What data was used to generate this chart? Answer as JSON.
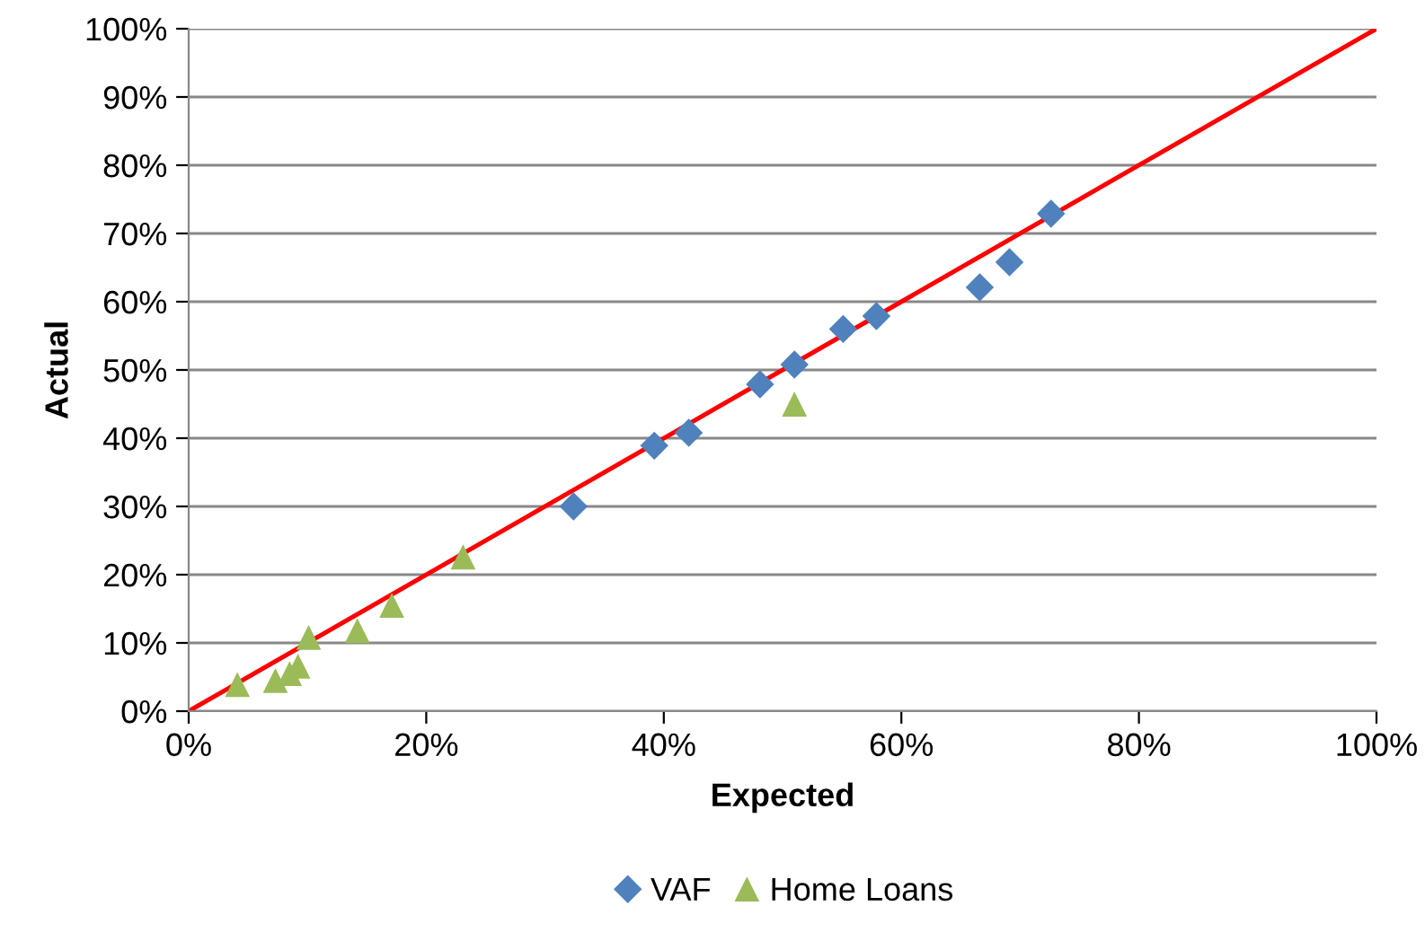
{
  "chart_data": {
    "type": "scatter",
    "xlabel": "Expected",
    "ylabel": "Actual",
    "xlim": [
      0,
      1
    ],
    "ylim": [
      0,
      1
    ],
    "xticks": [
      {
        "value": 0,
        "label": "0%"
      },
      {
        "value": 0.2,
        "label": "20%"
      },
      {
        "value": 0.4,
        "label": "40%"
      },
      {
        "value": 0.6,
        "label": "60%"
      },
      {
        "value": 0.8,
        "label": "80%"
      },
      {
        "value": 1,
        "label": "100%"
      }
    ],
    "yticks": [
      {
        "value": 0,
        "label": "0%"
      },
      {
        "value": 0.1,
        "label": "10%"
      },
      {
        "value": 0.2,
        "label": "20%"
      },
      {
        "value": 0.3,
        "label": "30%"
      },
      {
        "value": 0.4,
        "label": "40%"
      },
      {
        "value": 0.5,
        "label": "50%"
      },
      {
        "value": 0.6,
        "label": "60%"
      },
      {
        "value": 0.7,
        "label": "70%"
      },
      {
        "value": 0.8,
        "label": "80%"
      },
      {
        "value": 0.9,
        "label": "90%"
      },
      {
        "value": 1,
        "label": "100%"
      }
    ],
    "grid": "y",
    "legend": "bottom",
    "series": [
      {
        "type": "line",
        "color": "#ff0000",
        "marker": "none",
        "line_style": "solid",
        "x": [
          0,
          1
        ],
        "values": [
          0,
          1
        ]
      },
      {
        "name": "VAF",
        "color": "#4f81bd",
        "marker": "diamond",
        "x": [
          0.324,
          0.392,
          0.421,
          0.481,
          0.51,
          0.551,
          0.579,
          0.666,
          0.691,
          0.726
        ],
        "values": [
          0.3,
          0.389,
          0.408,
          0.479,
          0.508,
          0.56,
          0.579,
          0.621,
          0.658,
          0.729
        ]
      },
      {
        "name": "Home Loans",
        "color": "#9bbb59",
        "marker": "triangle",
        "x": [
          0.041,
          0.073,
          0.085,
          0.092,
          0.101,
          0.142,
          0.171,
          0.231,
          0.51
        ],
        "values": [
          0.039,
          0.045,
          0.055,
          0.066,
          0.108,
          0.118,
          0.155,
          0.226,
          0.45
        ]
      }
    ]
  }
}
